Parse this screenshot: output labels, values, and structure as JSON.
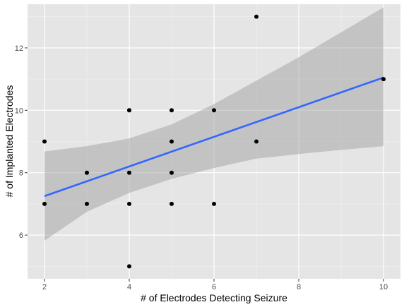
{
  "chart_data": {
    "type": "scatter",
    "title": "",
    "xlabel": "# of Electrodes Detecting Seizure",
    "ylabel": "# of Implanted Electrodes",
    "xlim": [
      1.6,
      10.4
    ],
    "ylim": [
      4.6,
      13.4
    ],
    "x_ticks": [
      2,
      4,
      6,
      8,
      10
    ],
    "y_ticks": [
      6,
      8,
      10,
      12
    ],
    "grid": true,
    "points": [
      {
        "x": 2,
        "y": 9
      },
      {
        "x": 2,
        "y": 7
      },
      {
        "x": 3,
        "y": 8
      },
      {
        "x": 3,
        "y": 7
      },
      {
        "x": 4,
        "y": 10
      },
      {
        "x": 4,
        "y": 10
      },
      {
        "x": 4,
        "y": 8
      },
      {
        "x": 4,
        "y": 7
      },
      {
        "x": 4,
        "y": 5
      },
      {
        "x": 5,
        "y": 10
      },
      {
        "x": 5,
        "y": 9
      },
      {
        "x": 5,
        "y": 8
      },
      {
        "x": 5,
        "y": 7
      },
      {
        "x": 6,
        "y": 10
      },
      {
        "x": 6,
        "y": 7
      },
      {
        "x": 7,
        "y": 13
      },
      {
        "x": 7,
        "y": 9
      },
      {
        "x": 10,
        "y": 11
      }
    ],
    "fit_line": {
      "x": [
        2,
        10
      ],
      "y": [
        7.25,
        11.05
      ]
    },
    "confidence_band": {
      "x": [
        2,
        3,
        4,
        5,
        6,
        7,
        8,
        9,
        10
      ],
      "upper": [
        8.68,
        8.85,
        9.1,
        9.55,
        10.2,
        10.95,
        11.7,
        12.5,
        13.3
      ],
      "lower": [
        5.82,
        6.75,
        7.35,
        7.8,
        8.15,
        8.45,
        8.6,
        8.73,
        8.85
      ]
    },
    "colors": {
      "panel": "#e5e5e5",
      "grid_major": "#ffffff",
      "points": "#000000",
      "line": "#3366ff",
      "band": "#999999"
    }
  }
}
